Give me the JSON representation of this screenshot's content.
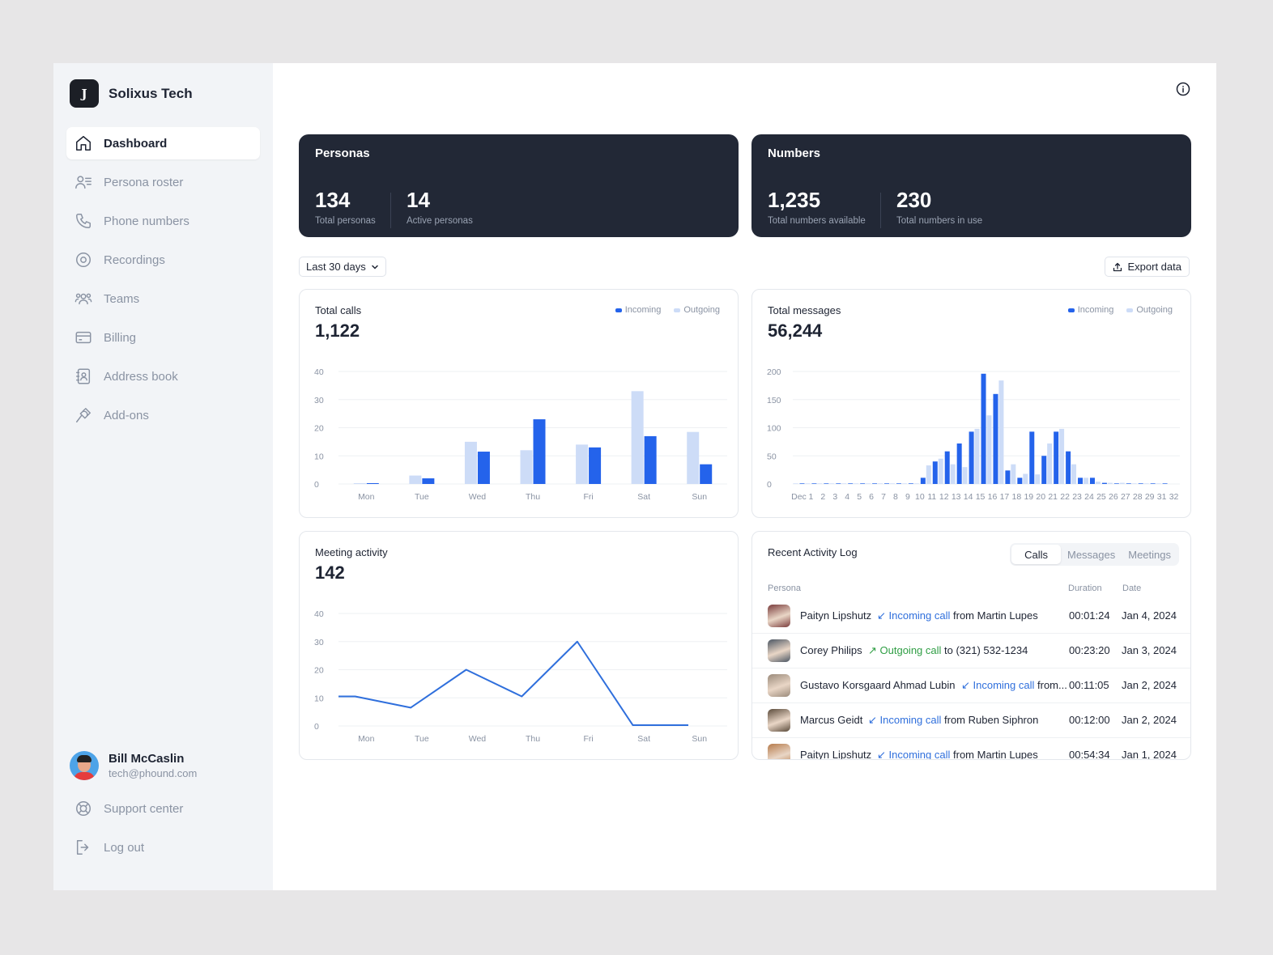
{
  "brand": {
    "name": "Solixus Tech",
    "logo_letter": "J"
  },
  "sidebar": {
    "items": [
      {
        "label": "Dashboard",
        "icon": "home-icon",
        "active": true
      },
      {
        "label": "Persona roster",
        "icon": "persona-list-icon"
      },
      {
        "label": "Phone numbers",
        "icon": "phone-icon"
      },
      {
        "label": "Recordings",
        "icon": "record-icon"
      },
      {
        "label": "Teams",
        "icon": "teams-icon"
      },
      {
        "label": "Billing",
        "icon": "credit-card-icon"
      },
      {
        "label": "Address book",
        "icon": "address-book-icon"
      },
      {
        "label": "Add-ons",
        "icon": "plug-icon"
      }
    ],
    "user": {
      "name": "Bill McCaslin",
      "email": "tech@phound.com"
    },
    "bottom": [
      {
        "label": "Support center",
        "icon": "lifebuoy-icon"
      },
      {
        "label": "Log out",
        "icon": "logout-icon"
      }
    ]
  },
  "personas": {
    "title": "Personas",
    "total_value": "134",
    "total_label": "Total personas",
    "active_value": "14",
    "active_label": "Active personas"
  },
  "numbers": {
    "title": "Numbers",
    "available_value": "1,235",
    "available_label": "Total numbers available",
    "in_use_value": "230",
    "in_use_label": "Total numbers in use"
  },
  "filters": {
    "range": "Last 30 days",
    "export_label": "Export data"
  },
  "legend": {
    "incoming": "Incoming",
    "outgoing": "Outgoing"
  },
  "colors": {
    "incoming": "#2463eb",
    "outgoing": "#cddcf7",
    "line": "#2f6fdc",
    "card_dark": "#222836"
  },
  "calls_card": {
    "title": "Total calls",
    "value": "1,122"
  },
  "messages_card": {
    "title": "Total messages",
    "value": "56,244"
  },
  "meetings_card": {
    "title": "Meeting activity",
    "value": "142"
  },
  "chart_data": [
    {
      "type": "bar",
      "title": "Total calls",
      "categories": [
        "Mon",
        "Tue",
        "Wed",
        "Thu",
        "Fri",
        "Sat",
        "Sun"
      ],
      "series": [
        {
          "name": "Outgoing",
          "values": [
            0.3,
            3,
            15,
            12,
            14,
            33,
            18.5
          ]
        },
        {
          "name": "Incoming",
          "values": [
            0.3,
            2,
            11.5,
            23,
            13,
            17,
            7
          ]
        }
      ],
      "yticks": [
        0,
        10,
        20,
        30,
        40
      ],
      "ylim": [
        0,
        40
      ]
    },
    {
      "type": "bar",
      "title": "Total messages",
      "categories": [
        "Dec",
        "1",
        "2",
        "3",
        "4",
        "5",
        "6",
        "7",
        "8",
        "9",
        "10",
        "11",
        "12",
        "13",
        "14",
        "15",
        "16",
        "17",
        "18",
        "19",
        "20",
        "21",
        "22",
        "23",
        "24",
        "25",
        "26",
        "27",
        "28",
        "29",
        "31",
        "32"
      ],
      "series": [
        {
          "name": "Outgoing",
          "values": [
            1,
            1,
            1,
            1,
            1,
            1,
            1,
            1,
            1,
            1,
            1,
            33,
            45,
            35,
            30,
            98,
            122,
            184,
            35,
            18,
            17,
            72,
            98,
            35,
            11,
            4,
            2,
            2,
            1,
            1,
            1,
            0
          ]
        },
        {
          "name": "Incoming",
          "values": [
            1,
            1,
            1,
            1,
            1,
            1,
            1,
            1,
            1,
            1,
            11,
            40,
            58,
            72,
            93,
            196,
            160,
            24,
            11,
            93,
            50,
            93,
            58,
            11,
            11,
            2,
            1,
            1,
            1,
            1,
            1,
            0
          ]
        }
      ],
      "yticks": [
        0,
        50,
        100,
        150,
        200
      ],
      "ylim": [
        0,
        200
      ]
    },
    {
      "type": "line",
      "title": "Meeting activity",
      "categories": [
        "Mon",
        "Tue",
        "Wed",
        "Thu",
        "Fri",
        "Sat",
        "Sun"
      ],
      "x": [
        0,
        0.3,
        1.3,
        2.3,
        3.3,
        4.3,
        5.3,
        6.3
      ],
      "values": [
        10.5,
        10.5,
        6.5,
        20,
        10.5,
        30,
        0.3,
        0.3
      ],
      "yticks": [
        0,
        10,
        20,
        30,
        40
      ],
      "ylim": [
        0,
        40
      ]
    }
  ],
  "activity": {
    "title": "Recent Activity Log",
    "tabs": [
      "Calls",
      "Messages",
      "Meetings"
    ],
    "columns": {
      "persona": "Persona",
      "duration": "Duration",
      "date": "Date"
    },
    "rows": [
      {
        "name": "Paityn Lipshutz",
        "dir": "in",
        "type": "Incoming call",
        "party": "from Martin Lupes",
        "duration": "00:01:24",
        "date": "Jan 4, 2024",
        "avatar": "#7a3b3b"
      },
      {
        "name": "Corey Philips",
        "dir": "out",
        "type": "Outgoing call",
        "party": "to (321) 532-1234",
        "duration": "00:23:20",
        "date": "Jan 3, 2024",
        "avatar": "#4a5562"
      },
      {
        "name": "Gustavo Korsgaard Ahmad Lubin",
        "dir": "in",
        "type": "Incoming call",
        "party": "from...",
        "duration": "00:11:05",
        "date": "Jan 2, 2024",
        "avatar": "#9a8a7a"
      },
      {
        "name": "Marcus Geidt",
        "dir": "in",
        "type": "Incoming call",
        "party": "from Ruben Siphron",
        "duration": "00:12:00",
        "date": "Jan 2, 2024",
        "avatar": "#5a4a3a"
      },
      {
        "name": "Paityn Lipshutz",
        "dir": "in",
        "type": "Incoming call",
        "party": "from Martin Lupes",
        "duration": "00:54:34",
        "date": "Jan 1, 2024",
        "avatar": "#b67b4b"
      }
    ]
  }
}
